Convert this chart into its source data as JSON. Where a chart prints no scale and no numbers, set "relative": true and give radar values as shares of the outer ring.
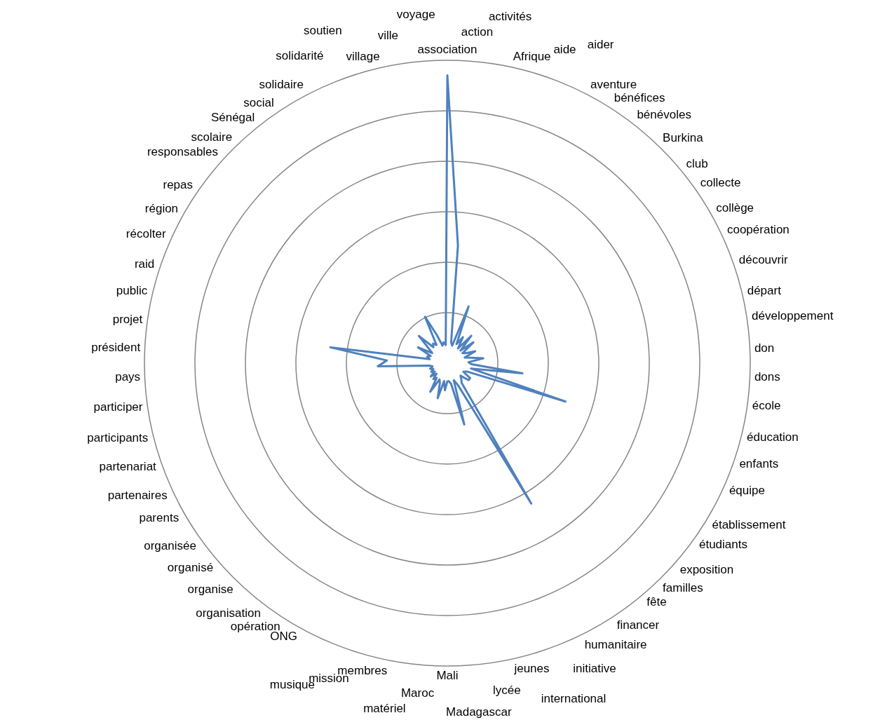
{
  "chart_data": {
    "type": "radar",
    "relative": true,
    "grid": true,
    "legend": false,
    "marker": "none",
    "line_style": "solid",
    "categories": [
      "association",
      "action",
      "activités",
      "Afrique",
      "aide",
      "aider",
      "aventure",
      "bénéfices",
      "bénévoles",
      "Burkina",
      "club",
      "collecte",
      "collège",
      "coopération",
      "découvrir",
      "départ",
      "développement",
      "don",
      "dons",
      "école",
      "éducation",
      "enfants",
      "équipe",
      "établissement",
      "étudiants",
      "exposition",
      "familles",
      "fête",
      "financer",
      "humanitaire",
      "initiative",
      "international",
      "jeunes",
      "lycée",
      "Madagascar",
      "Mali",
      "Maroc",
      "matériel",
      "membres",
      "mission",
      "musique",
      "ONG",
      "opération",
      "organisation",
      "organise",
      "organisé",
      "organisée",
      "parents",
      "partenaires",
      "partenariat",
      "participants",
      "participer",
      "pays",
      "président",
      "projet",
      "public",
      "raid",
      "récolter",
      "région",
      "repas",
      "responsables",
      "scolaire",
      "Sénégal",
      "social",
      "solidaire",
      "solidarité",
      "soutien",
      "village",
      "ville",
      "voyage"
    ],
    "series": [
      {
        "color": "#4f81bd",
        "values": [
          0.95,
          0.39,
          0.07,
          0.06,
          0.2,
          0.07,
          0.1,
          0.06,
          0.12,
          0.06,
          0.11,
          0.06,
          0.07,
          0.1,
          0.06,
          0.08,
          0.12,
          0.07,
          0.08,
          0.25,
          0.08,
          0.41,
          0.07,
          0.06,
          0.09,
          0.09,
          0.06,
          0.07,
          0.08,
          0.54,
          0.08,
          0.06,
          0.21,
          0.07,
          0.06,
          0.06,
          0.09,
          0.06,
          0.12,
          0.07,
          0.06,
          0.11,
          0.06,
          0.07,
          0.05,
          0.07,
          0.05,
          0.06,
          0.05,
          0.06,
          0.05,
          0.06,
          0.23,
          0.2,
          0.39,
          0.06,
          0.07,
          0.06,
          0.11,
          0.06,
          0.08,
          0.13,
          0.07,
          0.08,
          0.07,
          0.17,
          0.1,
          0.06,
          0.07,
          0.06
        ]
      }
    ]
  }
}
